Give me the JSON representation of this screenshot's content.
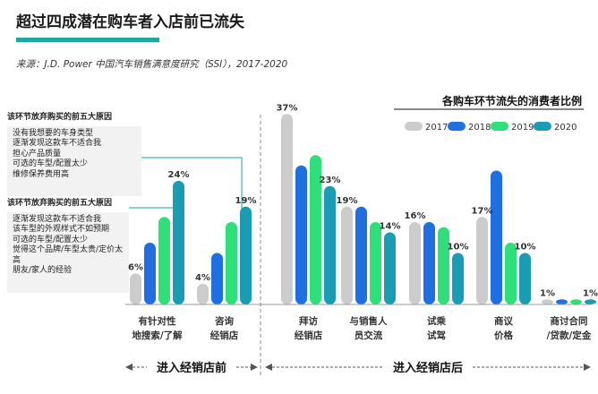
{
  "header": {
    "title": "超过四成潜在购车者入店前已流失",
    "source": "来源：J.D. Power 中国汽车销售满意度研究（SSI），2017-2020"
  },
  "reasons": [
    {
      "heading": "该环节放弃购买的前五大原因",
      "items": [
        "没有我想要的车身类型",
        "逐渐发现这款车不适合我",
        "担心产品质量",
        "可选的车型/配置太少",
        "维修保养费用高"
      ]
    },
    {
      "heading": "该环节放弃购买的前五大原因",
      "items": [
        "逐渐发现这款车不适合我",
        "该车型的外观样式不如预期",
        "可选的车型/配置太少",
        "觉得这个品牌/车型太贵/定价太高",
        "朋友/家人的经验"
      ]
    }
  ],
  "chart_data": {
    "type": "bar",
    "title": "各购车环节流失的消费者比例",
    "categories": [
      [
        "有针对性",
        "地搜索/了解"
      ],
      [
        "咨询",
        "经销店"
      ],
      [
        "拜访",
        "经销店"
      ],
      [
        "与销售人",
        "员交流"
      ],
      [
        "试乘",
        "试驾"
      ],
      [
        "商议",
        "价格"
      ],
      [
        "商讨合同",
        "/贷款/定金"
      ]
    ],
    "series": [
      {
        "name": "2017",
        "color": "#cccccc",
        "values": [
          6,
          4,
          37,
          19,
          16,
          17,
          1
        ]
      },
      {
        "name": "2018",
        "color": "#1f6fe0",
        "values": [
          12,
          10,
          27,
          19,
          16,
          26,
          1
        ]
      },
      {
        "name": "2019",
        "color": "#2fe07a",
        "values": [
          17,
          16,
          29,
          16,
          15,
          12,
          1
        ]
      },
      {
        "name": "2020",
        "color": "#1a9db4",
        "values": [
          24,
          19,
          23,
          14,
          10,
          10,
          1
        ]
      }
    ],
    "data_labels": [
      {
        "category": 0,
        "series": 0,
        "text": "6%"
      },
      {
        "category": 0,
        "series": 3,
        "text": "24%"
      },
      {
        "category": 1,
        "series": 0,
        "text": "4%"
      },
      {
        "category": 1,
        "series": 3,
        "text": "19%"
      },
      {
        "category": 2,
        "series": 0,
        "text": "37%"
      },
      {
        "category": 2,
        "series": 3,
        "text": "23%"
      },
      {
        "category": 3,
        "series": 0,
        "text": "19%"
      },
      {
        "category": 3,
        "series": 3,
        "text": "14%"
      },
      {
        "category": 4,
        "series": 0,
        "text": "16%"
      },
      {
        "category": 4,
        "series": 3,
        "text": "10%"
      },
      {
        "category": 5,
        "series": 0,
        "text": "17%"
      },
      {
        "category": 5,
        "series": 3,
        "text": "10%"
      },
      {
        "category": 6,
        "series": 0,
        "text": "1%"
      },
      {
        "category": 6,
        "series": 3,
        "text": "1%"
      }
    ],
    "ylim": [
      0,
      40
    ],
    "legend_position": "top-right",
    "phases": [
      {
        "label": "进入经销店前",
        "categories": [
          0,
          1
        ]
      },
      {
        "label": "进入经销店后",
        "categories": [
          2,
          3,
          4,
          5,
          6
        ]
      }
    ]
  }
}
